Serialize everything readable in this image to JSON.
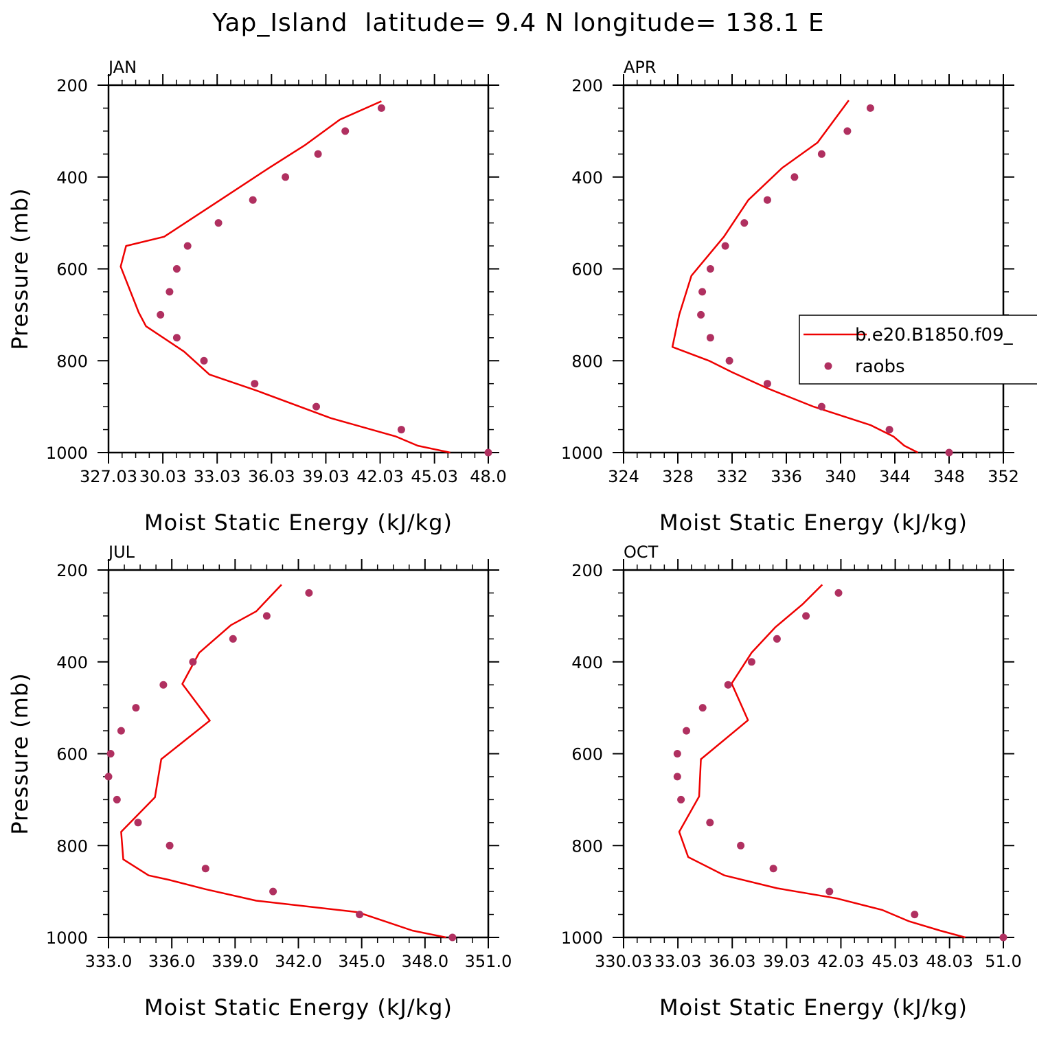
{
  "figure": {
    "title": "Yap_Island  latitude= 9.4 N longitude= 138.1 E"
  },
  "legend": {
    "entries": [
      {
        "label": "b.e20.B1850.f09_",
        "style": "line",
        "color": "#ee0000"
      },
      {
        "label": "raobs",
        "style": "marker",
        "color": "#b03060"
      }
    ],
    "placement": "APR panel, right side, clipped by page edge"
  },
  "colors": {
    "model_line": "#ee0000",
    "obs_marker": "#b03060",
    "axes": "#000000"
  },
  "chart_data": [
    {
      "type": "line",
      "panel": "JAN",
      "xlabel": "Moist Static Energy (kJ/kg)",
      "ylabel": "Pressure (mb)",
      "xlim": [
        327.03,
        348.0
      ],
      "ylim": [
        1000,
        200
      ],
      "y_inverted": true,
      "xticks": [
        327.03,
        330.03,
        333.03,
        336.03,
        339.03,
        342.03,
        345.03,
        348.0
      ],
      "xtick_labels": [
        "327.03",
        "30.03",
        "33.03",
        "36.03",
        "39.03",
        "42.03",
        "45.03",
        "48.0"
      ],
      "yticks": [
        200,
        400,
        600,
        800,
        1000
      ],
      "ytick_labels": [
        "200",
        "400",
        "600",
        "800",
        "1000"
      ],
      "series": [
        {
          "name": "b.e20.B1850.f09_",
          "kind": "line",
          "x": [
            345.9,
            344.1,
            342.9,
            339.3,
            335.2,
            332.6,
            331.2,
            329.1,
            328.7,
            327.7,
            328.0,
            330.1,
            333.2,
            335.9,
            337.9,
            339.8,
            342.1
          ],
          "y": [
            1000,
            985,
            965,
            925,
            865,
            830,
            780,
            725,
            695,
            595,
            550,
            530,
            450,
            380,
            330,
            275,
            235
          ]
        },
        {
          "name": "raobs",
          "kind": "scatter",
          "x": [
            348.0,
            343.2,
            338.5,
            335.1,
            332.3,
            330.8,
            329.9,
            330.4,
            330.8,
            331.4,
            333.1,
            335.0,
            336.8,
            338.6,
            340.1,
            342.1
          ],
          "y": [
            1000,
            950,
            900,
            850,
            800,
            750,
            700,
            650,
            600,
            550,
            500,
            450,
            400,
            350,
            300,
            250
          ]
        }
      ]
    },
    {
      "type": "line",
      "panel": "APR",
      "xlabel": "Moist Static Energy (kJ/kg)",
      "ylabel": "",
      "xlim": [
        324,
        352
      ],
      "ylim": [
        1000,
        200
      ],
      "y_inverted": true,
      "xticks": [
        324,
        328,
        332,
        336,
        340,
        344,
        348,
        352
      ],
      "xtick_labels": [
        "324",
        "328",
        "332",
        "336",
        "340",
        "344",
        "348",
        "352"
      ],
      "yticks": [
        200,
        400,
        600,
        800,
        1000
      ],
      "ytick_labels": [
        "200",
        "400",
        "600",
        "800",
        "1000"
      ],
      "series": [
        {
          "name": "b.e20.B1850.f09_",
          "kind": "line",
          "x": [
            345.7,
            344.7,
            343.9,
            342.2,
            338.0,
            334.6,
            332.0,
            330.3,
            327.6,
            328.1,
            329.0,
            331.4,
            333.2,
            335.7,
            338.3,
            340.6
          ],
          "y": [
            1000,
            985,
            965,
            940,
            900,
            860,
            825,
            800,
            770,
            700,
            615,
            530,
            450,
            380,
            325,
            233
          ]
        },
        {
          "name": "raobs",
          "kind": "scatter",
          "x": [
            348.0,
            343.6,
            338.6,
            334.6,
            331.8,
            330.4,
            329.7,
            329.8,
            330.4,
            331.5,
            332.9,
            334.6,
            336.6,
            338.6,
            340.5,
            342.2
          ],
          "y": [
            1000,
            950,
            900,
            850,
            800,
            750,
            700,
            650,
            600,
            550,
            500,
            450,
            400,
            350,
            300,
            250
          ]
        }
      ]
    },
    {
      "type": "line",
      "panel": "JUL",
      "xlabel": "Moist Static Energy (kJ/kg)",
      "ylabel": "Pressure (mb)",
      "xlim": [
        333.0,
        351.0
      ],
      "ylim": [
        1000,
        200
      ],
      "y_inverted": true,
      "xticks": [
        333.0,
        336.0,
        339.0,
        342.0,
        345.0,
        348.0,
        351.0
      ],
      "xtick_labels": [
        "333.0",
        "336.0",
        "339.0",
        "342.0",
        "345.0",
        "348.0",
        "351.0"
      ],
      "yticks": [
        200,
        400,
        600,
        800,
        1000
      ],
      "ytick_labels": [
        "200",
        "400",
        "600",
        "800",
        "1000"
      ],
      "series": [
        {
          "name": "b.e20.B1850.f09_",
          "kind": "line",
          "x": [
            349.0,
            347.4,
            346.1,
            344.8,
            340.0,
            337.6,
            335.9,
            334.9,
            333.7,
            333.6,
            335.2,
            335.5,
            337.8,
            336.5,
            337.3,
            338.8,
            340.0,
            341.2
          ],
          "y": [
            1000,
            985,
            965,
            945,
            920,
            895,
            875,
            865,
            830,
            770,
            695,
            612,
            528,
            448,
            380,
            320,
            290,
            232
          ]
        },
        {
          "name": "raobs",
          "kind": "scatter",
          "x": [
            349.3,
            344.9,
            340.8,
            337.6,
            335.9,
            334.4,
            333.4,
            333.0,
            333.1,
            333.6,
            334.3,
            335.6,
            337.0,
            338.9,
            340.5,
            342.5
          ],
          "y": [
            1000,
            950,
            900,
            850,
            800,
            750,
            700,
            650,
            600,
            550,
            500,
            450,
            400,
            350,
            300,
            250
          ]
        }
      ]
    },
    {
      "type": "line",
      "panel": "OCT",
      "xlabel": "Moist Static Energy (kJ/kg)",
      "ylabel": "",
      "xlim": [
        330.03,
        351.0
      ],
      "ylim": [
        1000,
        200
      ],
      "y_inverted": true,
      "xticks": [
        330.03,
        333.03,
        336.03,
        339.03,
        342.03,
        345.03,
        348.03,
        351.0
      ],
      "xtick_labels": [
        "330.03",
        "33.03",
        "36.03",
        "39.03",
        "42.03",
        "45.03",
        "48.03",
        "51.0"
      ],
      "yticks": [
        200,
        400,
        600,
        800,
        1000
      ],
      "ytick_labels": [
        "200",
        "400",
        "600",
        "800",
        "1000"
      ],
      "series": [
        {
          "name": "b.e20.B1850.f09_",
          "kind": "line",
          "x": [
            348.9,
            347.5,
            345.8,
            344.3,
            341.8,
            338.5,
            335.6,
            333.6,
            333.1,
            334.2,
            334.3,
            336.9,
            336.0,
            337.1,
            338.4,
            339.9,
            341.0
          ],
          "y": [
            1000,
            985,
            965,
            940,
            915,
            893,
            865,
            825,
            770,
            693,
            612,
            527,
            447,
            380,
            325,
            275,
            232
          ]
        },
        {
          "name": "raobs",
          "kind": "scatter",
          "x": [
            351.0,
            346.1,
            341.4,
            338.3,
            336.5,
            334.8,
            333.2,
            333.0,
            333.0,
            333.5,
            334.4,
            335.8,
            337.1,
            338.5,
            340.1,
            341.9
          ],
          "y": [
            1000,
            950,
            900,
            850,
            800,
            750,
            700,
            650,
            600,
            550,
            500,
            450,
            400,
            350,
            300,
            250
          ]
        }
      ]
    }
  ]
}
